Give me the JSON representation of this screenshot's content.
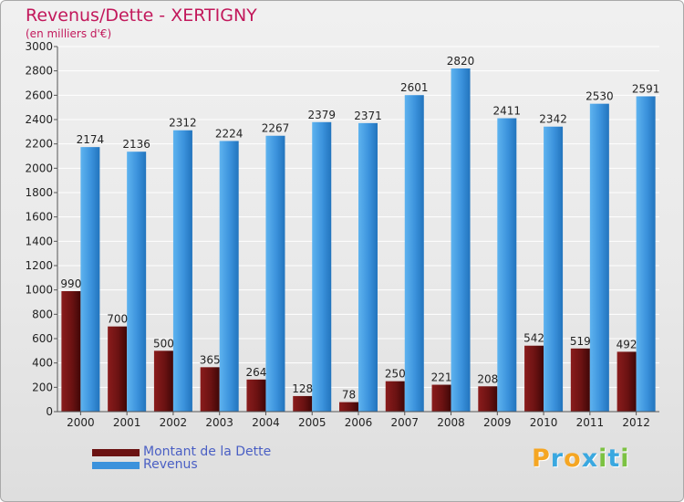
{
  "title": "Revenus/Dette - XERTIGNY",
  "subtitle": "(en milliers d'€)",
  "colors": {
    "title": "#c2185b",
    "legend_text": "#4a5fc4",
    "dette": "#6b1212",
    "revenus": "#3b92dc"
  },
  "legend": {
    "dette": "Montant de la Dette",
    "revenus": "Revenus"
  },
  "logo": {
    "text": "Proxiti",
    "letters": [
      "P",
      "r",
      "o",
      "x",
      "i",
      "t",
      "i"
    ],
    "colors": [
      "#f5a623",
      "#3aa8e0",
      "#f5a623",
      "#3aa8e0",
      "#7cc242",
      "#3aa8e0",
      "#7cc242"
    ]
  },
  "chart_data": {
    "type": "bar",
    "title": "Revenus/Dette - XERTIGNY",
    "subtitle": "(en milliers d'€)",
    "categories": [
      "2000",
      "2001",
      "2002",
      "2003",
      "2004",
      "2005",
      "2006",
      "2007",
      "2008",
      "2009",
      "2010",
      "2011",
      "2012"
    ],
    "series": [
      {
        "name": "Montant de la Dette",
        "values": [
          990,
          700,
          500,
          365,
          264,
          128,
          78,
          250,
          221,
          208,
          542,
          519,
          492
        ]
      },
      {
        "name": "Revenus",
        "values": [
          2174,
          2136,
          2312,
          2224,
          2267,
          2379,
          2371,
          2601,
          2820,
          2411,
          2342,
          2530,
          2591
        ]
      }
    ],
    "ylim": [
      0,
      3000
    ],
    "yticks": [
      0,
      200,
      400,
      600,
      800,
      1000,
      1200,
      1400,
      1600,
      1800,
      2000,
      2200,
      2400,
      2600,
      2800,
      3000
    ],
    "grid": true,
    "legend_position": "bottom-left"
  }
}
